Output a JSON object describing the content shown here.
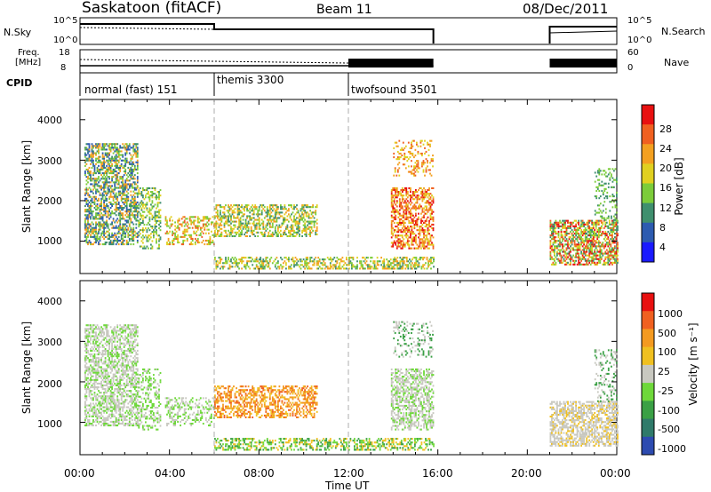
{
  "header": {
    "station": "Saskatoon (fitACF)",
    "beam": "Beam 11",
    "date": "08/Dec/2011"
  },
  "strips": {
    "nsky_label": "N.Sky",
    "nsky_ticks": [
      "10^5",
      "10^0"
    ],
    "nsearch_label": "N.Search",
    "freq_label_line1": "Freq.",
    "freq_label_line2": "[MHz]",
    "freq_ticks": [
      "18",
      "8"
    ],
    "nave_ticks": [
      "60",
      "0"
    ],
    "nave_label": "Nave",
    "cpid_label": "CPID"
  },
  "cpid_segments": [
    {
      "label": "normal (fast) 151",
      "start_hour": 0
    },
    {
      "label": "themis 3300",
      "start_hour": 6
    },
    {
      "label": "twofsound 3501",
      "start_hour": 12
    }
  ],
  "chart_data": [
    {
      "type": "heatmap",
      "ylabel": "Slant Range [km]",
      "yticks": [
        1000,
        2000,
        3000,
        4000
      ],
      "ylim": [
        200,
        4500
      ],
      "colorbar": {
        "label": "Power [dB]",
        "ticks": [
          "4",
          "8",
          "12",
          "16",
          "20",
          "24",
          "28"
        ],
        "colors": [
          "#1a1aff",
          "#2d5bb0",
          "#3f8f6e",
          "#7ccc3a",
          "#e0d020",
          "#f3a020",
          "#f06020",
          "#e81010"
        ]
      }
    },
    {
      "type": "heatmap",
      "ylabel": "Slant Range [km]",
      "yticks": [
        1000,
        2000,
        3000,
        4000
      ],
      "ylim": [
        200,
        4500
      ],
      "colorbar": {
        "label": "Velocity [m s⁻¹]",
        "ticks": [
          "1000",
          "500",
          "100",
          "25",
          "-25",
          "-100",
          "-500",
          "-1000"
        ],
        "colors": [
          "#2d4bb0",
          "#2f7a6a",
          "#3aa045",
          "#6ed83a",
          "#c8c8c0",
          "#f0c020",
          "#f49a20",
          "#f06020",
          "#e81010"
        ]
      }
    }
  ],
  "xaxis": {
    "ticks": [
      "00:00",
      "04:00",
      "08:00",
      "12:00",
      "16:00",
      "20:00",
      "00:00"
    ],
    "label": "Time UT"
  }
}
